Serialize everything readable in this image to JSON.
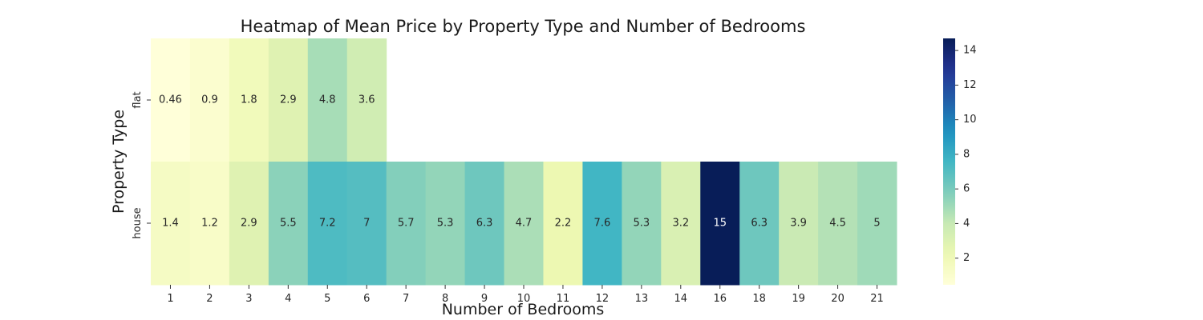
{
  "chart_data": {
    "type": "heatmap",
    "title": "Heatmap of Mean Price by Property Type and Number of Bedrooms",
    "xlabel": "Number of Bedrooms",
    "ylabel": "Property Type",
    "x_categories": [
      "1",
      "2",
      "3",
      "4",
      "5",
      "6",
      "7",
      "8",
      "9",
      "10",
      "11",
      "12",
      "13",
      "14",
      "16",
      "18",
      "19",
      "20",
      "21"
    ],
    "y_categories": [
      "flat",
      "house"
    ],
    "values": [
      [
        0.46,
        0.9,
        1.8,
        2.9,
        4.8,
        3.6,
        null,
        null,
        null,
        null,
        null,
        null,
        null,
        null,
        null,
        null,
        null,
        null,
        null
      ],
      [
        1.4,
        1.2,
        2.9,
        5.5,
        7.2,
        7,
        5.7,
        5.3,
        6.3,
        4.7,
        2.2,
        7.6,
        5.3,
        3.2,
        15,
        6.3,
        3.9,
        4.5,
        5
      ]
    ],
    "true_values": [
      [
        0.46,
        0.9,
        1.8,
        2.9,
        4.8,
        3.6,
        null,
        null,
        null,
        null,
        null,
        null,
        null,
        null,
        null,
        null,
        null,
        null,
        null
      ],
      [
        1.4,
        1.2,
        2.9,
        5.5,
        7.2,
        7.0,
        5.7,
        5.3,
        6.3,
        4.7,
        2.2,
        7.6,
        5.3,
        3.2,
        14.7,
        6.3,
        3.9,
        4.5,
        5.0
      ]
    ],
    "colormap": "YlGnBu",
    "vmin": 0.46,
    "vmax": 14.7,
    "colorbar_ticks": [
      2,
      4,
      6,
      8,
      10,
      12,
      14
    ]
  }
}
